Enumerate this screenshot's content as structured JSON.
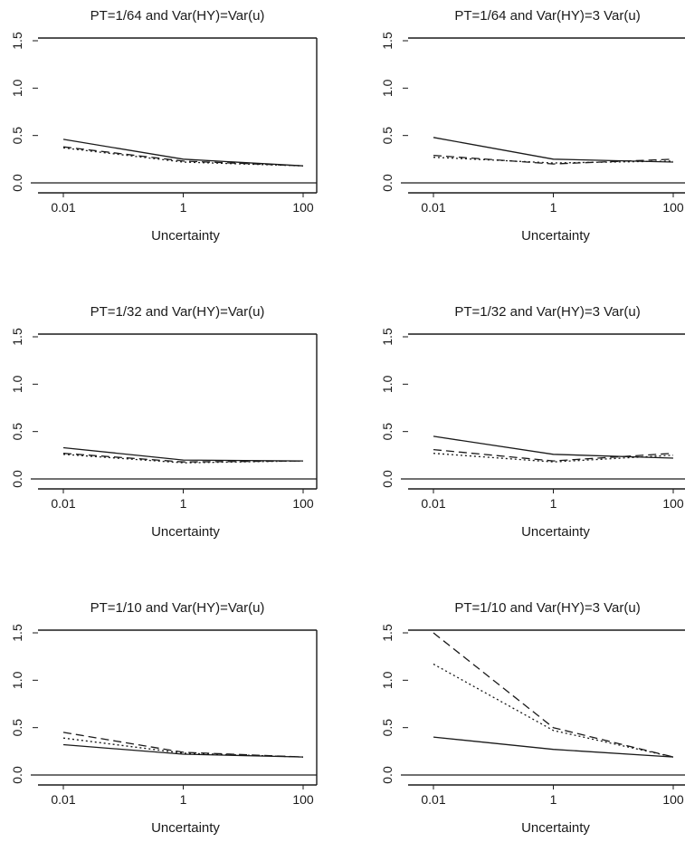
{
  "chart_data": [
    {
      "type": "line",
      "title": "PT=1/64 and Var(HY)=Var(u)",
      "xlabel": "Uncertainty",
      "ylabel": "",
      "x_scale": "log",
      "x": [
        0.01,
        1,
        100
      ],
      "x_ticks": [
        "0.01",
        "1",
        "100"
      ],
      "ylim": [
        0,
        1.5
      ],
      "y_ticks": [
        "0.0",
        "0.5",
        "1.0",
        "1.5"
      ],
      "series": [
        {
          "style": "solid",
          "values": [
            0.46,
            0.25,
            0.18
          ]
        },
        {
          "style": "dashed",
          "values": [
            0.38,
            0.23,
            0.18
          ]
        },
        {
          "style": "dotted",
          "values": [
            0.37,
            0.22,
            0.18
          ]
        }
      ],
      "grid": false
    },
    {
      "type": "line",
      "title": "PT=1/64 and Var(HY)=3 Var(u)",
      "xlabel": "Uncertainty",
      "ylabel": "",
      "x_scale": "log",
      "x": [
        0.01,
        1,
        100
      ],
      "x_ticks": [
        "0.01",
        "1",
        "100"
      ],
      "ylim": [
        0,
        1.5
      ],
      "y_ticks": [
        "0.0",
        "0.5",
        "1.0",
        "1.5"
      ],
      "series": [
        {
          "style": "solid",
          "values": [
            0.48,
            0.25,
            0.22
          ]
        },
        {
          "style": "dashed",
          "values": [
            0.29,
            0.2,
            0.25
          ]
        },
        {
          "style": "dotted",
          "values": [
            0.27,
            0.21,
            0.23
          ]
        }
      ],
      "grid": false
    },
    {
      "type": "line",
      "title": "PT=1/32 and Var(HY)=Var(u)",
      "xlabel": "Uncertainty",
      "ylabel": "",
      "x_scale": "log",
      "x": [
        0.01,
        1,
        100
      ],
      "x_ticks": [
        "0.01",
        "1",
        "100"
      ],
      "ylim": [
        0,
        1.5
      ],
      "y_ticks": [
        "0.0",
        "0.5",
        "1.0",
        "1.5"
      ],
      "series": [
        {
          "style": "solid",
          "values": [
            0.33,
            0.2,
            0.19
          ]
        },
        {
          "style": "dashed",
          "values": [
            0.27,
            0.18,
            0.19
          ]
        },
        {
          "style": "dotted",
          "values": [
            0.26,
            0.17,
            0.19
          ]
        }
      ],
      "grid": false
    },
    {
      "type": "line",
      "title": "PT=1/32 and Var(HY)=3 Var(u)",
      "xlabel": "Uncertainty",
      "ylabel": "",
      "x_scale": "log",
      "x": [
        0.01,
        1,
        100
      ],
      "x_ticks": [
        "0.01",
        "1",
        "100"
      ],
      "ylim": [
        0,
        1.5
      ],
      "y_ticks": [
        "0.0",
        "0.5",
        "1.0",
        "1.5"
      ],
      "series": [
        {
          "style": "solid",
          "values": [
            0.45,
            0.26,
            0.22
          ]
        },
        {
          "style": "dashed",
          "values": [
            0.31,
            0.19,
            0.27
          ]
        },
        {
          "style": "dotted",
          "values": [
            0.27,
            0.18,
            0.25
          ]
        }
      ],
      "grid": false
    },
    {
      "type": "line",
      "title": "PT=1/10 and Var(HY)=Var(u)",
      "xlabel": "Uncertainty",
      "ylabel": "",
      "x_scale": "log",
      "x": [
        0.01,
        1,
        100
      ],
      "x_ticks": [
        "0.01",
        "1",
        "100"
      ],
      "ylim": [
        0,
        1.5
      ],
      "y_ticks": [
        "0.0",
        "0.5",
        "1.0",
        "1.5"
      ],
      "series": [
        {
          "style": "solid",
          "values": [
            0.32,
            0.22,
            0.19
          ]
        },
        {
          "style": "dashed",
          "values": [
            0.45,
            0.24,
            0.19
          ]
        },
        {
          "style": "dotted",
          "values": [
            0.39,
            0.23,
            0.19
          ]
        }
      ],
      "grid": false
    },
    {
      "type": "line",
      "title": "PT=1/10 and Var(HY)=3 Var(u)",
      "xlabel": "Uncertainty",
      "ylabel": "",
      "x_scale": "log",
      "x": [
        0.01,
        1,
        100
      ],
      "x_ticks": [
        "0.01",
        "1",
        "100"
      ],
      "ylim": [
        0,
        1.5
      ],
      "y_ticks": [
        "0.0",
        "0.5",
        "1.0",
        "1.5"
      ],
      "series": [
        {
          "style": "solid",
          "values": [
            0.4,
            0.27,
            0.19
          ]
        },
        {
          "style": "dashed",
          "values": [
            1.5,
            0.5,
            0.19
          ]
        },
        {
          "style": "dotted",
          "values": [
            1.17,
            0.47,
            0.19
          ]
        }
      ],
      "grid": false
    }
  ]
}
